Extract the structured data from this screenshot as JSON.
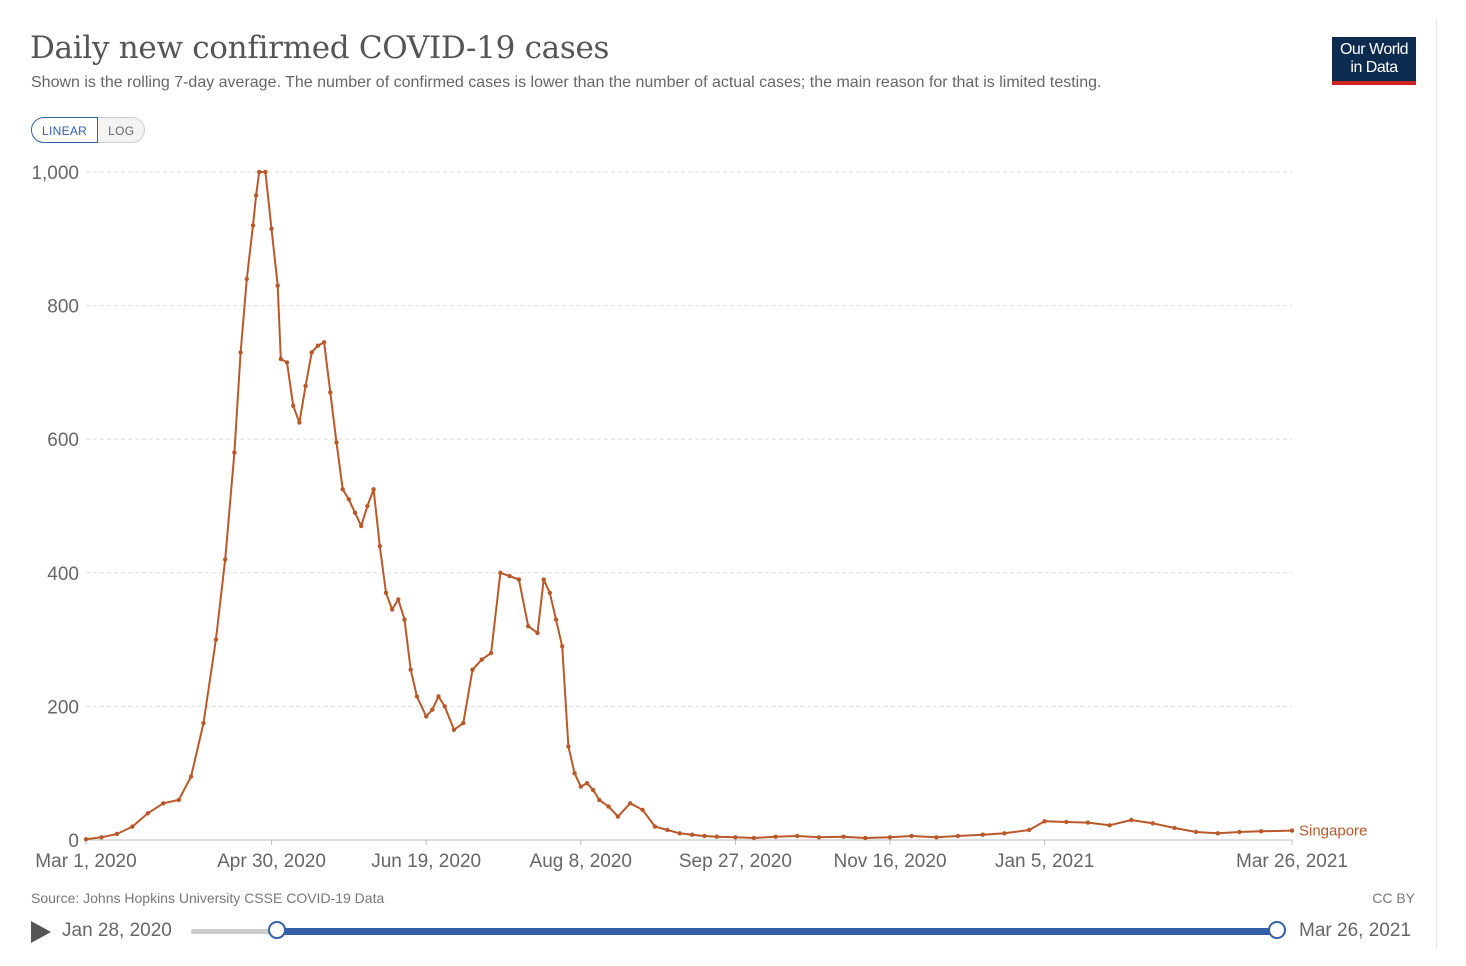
{
  "header": {
    "title": "Daily new confirmed COVID-19 cases",
    "subtitle": "Shown is the rolling 7-day average. The number of confirmed cases is lower than the number of actual cases; the main reason for that is limited testing.",
    "logo_line1": "Our World",
    "logo_line2": "in Data"
  },
  "scale_toggle": {
    "linear": "LINEAR",
    "log": "LOG",
    "selected": "LINEAR"
  },
  "footer": {
    "source": "Source: Johns Hopkins University CSSE COVID-19 Data",
    "license": "CC BY"
  },
  "timeline": {
    "start_date": "Jan 28, 2020",
    "end_date": "Mar 26, 2021",
    "selected_start": "Mar 1, 2020",
    "selected_end": "Mar 26, 2021"
  },
  "colors": {
    "series": "#b9592a",
    "accent": "#3360a9",
    "logo_bg": "#0d2b4e",
    "logo_bar": "#ce261e"
  },
  "chart_data": {
    "type": "line",
    "title": "Daily new confirmed COVID-19 cases",
    "ylim": [
      0,
      1000
    ],
    "yticks": [
      0,
      200,
      400,
      600,
      800,
      1000
    ],
    "ytick_labels": [
      "0",
      "200",
      "400",
      "600",
      "800",
      "1,000"
    ],
    "xticks": [
      "2020-03-01",
      "2020-04-30",
      "2020-06-19",
      "2020-08-08",
      "2020-09-27",
      "2020-11-16",
      "2021-01-05",
      "2021-03-26"
    ],
    "xtick_labels": [
      "Mar 1, 2020",
      "Apr 30, 2020",
      "Jun 19, 2020",
      "Aug 8, 2020",
      "Sep 27, 2020",
      "Nov 16, 2020",
      "Jan 5, 2021",
      "Mar 26, 2021"
    ],
    "grid": true,
    "series": [
      {
        "name": "Singapore",
        "color": "#b9592a",
        "x": [
          "2020-03-01",
          "2020-03-06",
          "2020-03-11",
          "2020-03-16",
          "2020-03-21",
          "2020-03-26",
          "2020-03-31",
          "2020-04-04",
          "2020-04-08",
          "2020-04-12",
          "2020-04-15",
          "2020-04-18",
          "2020-04-20",
          "2020-04-22",
          "2020-04-24",
          "2020-04-25",
          "2020-04-26",
          "2020-04-28",
          "2020-04-30",
          "2020-05-02",
          "2020-05-03",
          "2020-05-05",
          "2020-05-07",
          "2020-05-09",
          "2020-05-11",
          "2020-05-13",
          "2020-05-15",
          "2020-05-17",
          "2020-05-19",
          "2020-05-21",
          "2020-05-23",
          "2020-05-25",
          "2020-05-27",
          "2020-05-29",
          "2020-05-31",
          "2020-06-02",
          "2020-06-04",
          "2020-06-06",
          "2020-06-08",
          "2020-06-10",
          "2020-06-12",
          "2020-06-14",
          "2020-06-16",
          "2020-06-19",
          "2020-06-21",
          "2020-06-23",
          "2020-06-25",
          "2020-06-28",
          "2020-07-01",
          "2020-07-04",
          "2020-07-07",
          "2020-07-10",
          "2020-07-13",
          "2020-07-16",
          "2020-07-19",
          "2020-07-22",
          "2020-07-25",
          "2020-07-27",
          "2020-07-29",
          "2020-07-31",
          "2020-08-02",
          "2020-08-04",
          "2020-08-06",
          "2020-08-08",
          "2020-08-10",
          "2020-08-12",
          "2020-08-14",
          "2020-08-17",
          "2020-08-20",
          "2020-08-24",
          "2020-08-28",
          "2020-09-01",
          "2020-09-05",
          "2020-09-09",
          "2020-09-13",
          "2020-09-17",
          "2020-09-21",
          "2020-09-27",
          "2020-10-03",
          "2020-10-10",
          "2020-10-17",
          "2020-10-24",
          "2020-11-01",
          "2020-11-08",
          "2020-11-16",
          "2020-11-23",
          "2020-12-01",
          "2020-12-08",
          "2020-12-16",
          "2020-12-23",
          "2020-12-31",
          "2021-01-05",
          "2021-01-12",
          "2021-01-19",
          "2021-01-26",
          "2021-02-02",
          "2021-02-09",
          "2021-02-16",
          "2021-02-23",
          "2021-03-02",
          "2021-03-09",
          "2021-03-16",
          "2021-03-26"
        ],
        "y": [
          1,
          4,
          9,
          20,
          40,
          55,
          60,
          95,
          175,
          300,
          420,
          580,
          730,
          840,
          920,
          965,
          1000,
          1000,
          915,
          830,
          720,
          715,
          650,
          625,
          680,
          730,
          740,
          745,
          670,
          595,
          525,
          510,
          490,
          470,
          500,
          525,
          440,
          370,
          345,
          360,
          330,
          255,
          215,
          185,
          195,
          215,
          200,
          165,
          175,
          255,
          270,
          280,
          400,
          395,
          390,
          320,
          310,
          390,
          370,
          330,
          290,
          140,
          100,
          80,
          85,
          75,
          60,
          50,
          35,
          55,
          45,
          20,
          15,
          10,
          8,
          6,
          5,
          4,
          3,
          5,
          6,
          4,
          5,
          3,
          4,
          6,
          4,
          6,
          8,
          10,
          15,
          28,
          27,
          26,
          22,
          30,
          25,
          18,
          12,
          10,
          12,
          13,
          14
        ]
      }
    ]
  }
}
